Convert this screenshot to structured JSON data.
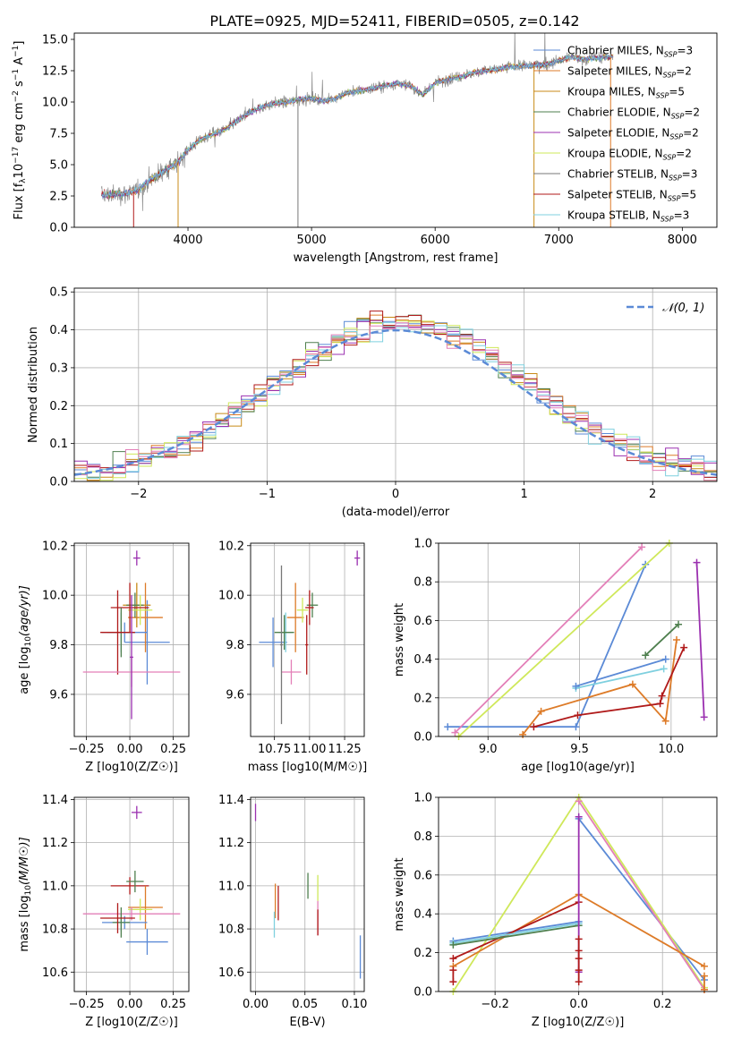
{
  "colors": {
    "chabrier_miles": "#5b8ad6",
    "salpeter_miles": "#dd7b28",
    "kroupa_miles": "#c88a17",
    "chabrier_elodie": "#4e7f4e",
    "salpeter_elodie": "#9b30b0",
    "kroupa_elodie": "#cfe85a",
    "chabrier_stelib": "#777777",
    "salpeter_stelib": "#b01a1a",
    "kroupa_stelib": "#7fd0df",
    "pink": "#e37fb8",
    "grid": "#b0b0b0"
  },
  "chart_data": [
    {
      "id": "spectrum",
      "type": "line",
      "title": "PLATE=0925, MJD=52411, FIBERID=0505, z=0.142",
      "xlabel": "wavelength [Angstrom, rest frame]",
      "ylabel": "Flux [f_λ 10^-17 erg cm^-2 s^-1 A^-1]",
      "xlim": [
        3080,
        8280
      ],
      "ylim": [
        0,
        15.5
      ],
      "xticks": [
        "4000",
        "5000",
        "6000",
        "7000",
        "8000"
      ],
      "yticks": [
        "0.0",
        "2.5",
        "5.0",
        "7.5",
        "10.0",
        "12.5",
        "15.0"
      ],
      "grid": false,
      "legend_position": "top-right",
      "legend": [
        {
          "label": "Chabrier MILES, N_SSP=3",
          "color_key": "chabrier_miles"
        },
        {
          "label": "Salpeter MILES, N_SSP=2",
          "color_key": "salpeter_miles"
        },
        {
          "label": "Kroupa MILES, N_SSP=5",
          "color_key": "kroupa_miles"
        },
        {
          "label": "Chabrier ELODIE, N_SSP=2",
          "color_key": "chabrier_elodie"
        },
        {
          "label": "Salpeter ELODIE, N_SSP=2",
          "color_key": "salpeter_elodie"
        },
        {
          "label": "Kroupa ELODIE, N_SSP=2",
          "color_key": "kroupa_elodie"
        },
        {
          "label": "Chabrier STELIB, N_SSP=3",
          "color_key": "chabrier_stelib"
        },
        {
          "label": "Salpeter STELIB, N_SSP=5",
          "color_key": "salpeter_stelib"
        },
        {
          "label": "Kroupa STELIB, N_SSP=3",
          "color_key": "kroupa_stelib"
        }
      ],
      "continuum": {
        "x": [
          3300,
          3400,
          3500,
          3600,
          3700,
          3800,
          3900,
          4000,
          4100,
          4200,
          4300,
          4400,
          4500,
          4600,
          4700,
          4800,
          4900,
          5000,
          5100,
          5200,
          5300,
          5400,
          5500,
          5600,
          5700,
          5800,
          5900,
          6000,
          6100,
          6200,
          6300,
          6400,
          6500,
          6600,
          6700,
          6800,
          6900,
          7000,
          7100,
          7200,
          7300,
          7400
        ],
        "y": [
          2.6,
          2.6,
          2.7,
          3.0,
          3.8,
          4.5,
          5.0,
          6.2,
          7.0,
          7.4,
          7.8,
          8.5,
          9.2,
          9.6,
          9.9,
          10.0,
          10.2,
          10.3,
          10.1,
          10.3,
          10.8,
          10.9,
          11.1,
          11.3,
          11.5,
          11.3,
          10.6,
          11.5,
          11.8,
          12.0,
          12.3,
          12.5,
          12.6,
          12.8,
          12.9,
          12.9,
          13.0,
          13.3,
          13.6,
          13.4,
          13.5,
          13.6
        ]
      }
    },
    {
      "id": "residuals",
      "type": "histogram",
      "xlabel": "(data-model)/error",
      "ylabel": "Normed distribution",
      "xlim": [
        -2.5,
        2.5
      ],
      "ylim": [
        0,
        0.51
      ],
      "xticks": [
        "−2",
        "−1",
        "0",
        "1",
        "2"
      ],
      "yticks": [
        "0.0",
        "0.1",
        "0.2",
        "0.3",
        "0.4",
        "0.5"
      ],
      "grid": true,
      "legend_position": "top-right",
      "legend": [
        {
          "label": "𝒩(0, 1)",
          "color_key": "chabrier_miles",
          "style": "dashed"
        }
      ],
      "bin_width": 0.1
    },
    {
      "id": "age_vs_Z",
      "type": "errorbar",
      "xlabel": "Z [log10(Z/Z☉)]",
      "ylabel": "age  [log10(age/yr)]",
      "xlim": [
        -0.32,
        0.34
      ],
      "ylim": [
        9.43,
        10.21
      ],
      "xticks": [
        "−0.25",
        "0.00",
        "0.25"
      ],
      "yticks": [
        "9.6",
        "9.8",
        "10.0",
        "10.2"
      ],
      "grid": true,
      "points": [
        {
          "c": "chabrier_miles",
          "x": 0.1,
          "y": 9.81,
          "xerr": 0.13,
          "yerr": 0.17
        },
        {
          "c": "salpeter_miles",
          "x": 0.09,
          "y": 9.91,
          "xerr": 0.1,
          "yerr": 0.14
        },
        {
          "c": "kroupa_miles",
          "x": 0.04,
          "y": 9.96,
          "xerr": 0.08,
          "yerr": 0.09
        },
        {
          "c": "chabrier_elodie",
          "x": 0.03,
          "y": 9.96,
          "xerr": 0.05,
          "yerr": 0.05
        },
        {
          "c": "salpeter_elodie",
          "x": 0.04,
          "y": 10.15,
          "xerr": 0.02,
          "yerr": 0.03
        },
        {
          "c": "kroupa_elodie",
          "x": 0.06,
          "y": 9.94,
          "xerr": 0.07,
          "yerr": 0.06
        },
        {
          "c": "salpeter_stelib",
          "x": 0.0,
          "y": 9.95,
          "xerr": 0.11,
          "yerr": 0.1
        },
        {
          "c": "kroupa_stelib",
          "x": -0.05,
          "y": 9.85,
          "xerr": 0.05,
          "yerr": 0.08
        },
        {
          "c": "chabrier_elodie",
          "x": -0.05,
          "y": 9.85,
          "xerr": 0.08,
          "yerr": 0.1
        },
        {
          "c": "chabrier_miles",
          "x": -0.03,
          "y": 9.85,
          "xerr": 0.13,
          "yerr": 0.04
        },
        {
          "c": "salpeter_stelib",
          "x": -0.07,
          "y": 9.85,
          "xerr": 0.1,
          "yerr": 0.17
        },
        {
          "c": "pink",
          "x": 0.01,
          "y": 9.69,
          "xerr": 0.28,
          "yerr": 0.06
        },
        {
          "c": "salpeter_elodie",
          "x": 0.01,
          "y": 9.75,
          "xerr": 0.01,
          "yerr": 0.25
        }
      ]
    },
    {
      "id": "age_vs_mass",
      "type": "errorbar",
      "xlabel": "mass [log10(M/M☉)]",
      "ylabel": "",
      "xlim": [
        10.58,
        11.39
      ],
      "ylim": [
        9.43,
        10.21
      ],
      "xticks": [
        "10.75",
        "11.00",
        "11.25"
      ],
      "yticks": [
        "9.6",
        "9.8",
        "10.0",
        "10.2"
      ],
      "grid": true,
      "points": [
        {
          "c": "chabrier_miles",
          "x": 10.74,
          "y": 9.81,
          "xerr": 0.1,
          "yerr": 0.1
        },
        {
          "c": "kroupa_stelib",
          "x": 10.83,
          "y": 9.85,
          "xerr": 0.05,
          "yerr": 0.08
        },
        {
          "c": "chabrier_elodie",
          "x": 10.82,
          "y": 9.85,
          "xerr": 0.07,
          "yerr": 0.07
        },
        {
          "c": "salpeter_miles",
          "x": 10.9,
          "y": 9.91,
          "xerr": 0.06,
          "yerr": 0.14
        },
        {
          "c": "kroupa_elodie",
          "x": 10.95,
          "y": 9.94,
          "xerr": 0.04,
          "yerr": 0.05
        },
        {
          "c": "chabrier_elodie",
          "x": 11.02,
          "y": 9.96,
          "xerr": 0.04,
          "yerr": 0.05
        },
        {
          "c": "salpeter_stelib",
          "x": 11.0,
          "y": 9.95,
          "xerr": 0.03,
          "yerr": 0.07
        },
        {
          "c": "pink",
          "x": 10.87,
          "y": 9.69,
          "xerr": 0.07,
          "yerr": 0.05
        },
        {
          "c": "chabrier_stelib",
          "x": 10.8,
          "y": 9.8,
          "xerr": 0.01,
          "yerr": 0.32
        },
        {
          "c": "salpeter_stelib",
          "x": 10.98,
          "y": 9.8,
          "xerr": 0.01,
          "yerr": 0.12
        },
        {
          "c": "salpeter_elodie",
          "x": 11.34,
          "y": 10.15,
          "xerr": 0.02,
          "yerr": 0.03
        }
      ]
    },
    {
      "id": "weight_vs_age",
      "type": "line",
      "xlabel": "age  [log10(age/yr)]",
      "ylabel": "mass weight",
      "xlim": [
        8.73,
        10.25
      ],
      "ylim": [
        0,
        1.0
      ],
      "xticks": [
        "9.0",
        "9.5",
        "10.0"
      ],
      "yticks": [
        "0.0",
        "0.2",
        "0.4",
        "0.6",
        "0.8",
        "1.0"
      ],
      "grid": true,
      "series": [
        {
          "c": "chabrier_miles",
          "x": [
            8.78,
            9.48,
            9.86
          ],
          "y": [
            0.05,
            0.05,
            0.89
          ]
        },
        {
          "c": "salpeter_miles",
          "x": [
            9.19,
            9.29,
            9.79,
            9.97,
            10.03
          ],
          "y": [
            0.01,
            0.13,
            0.27,
            0.08,
            0.5
          ]
        },
        {
          "c": "chabrier_elodie",
          "x": [
            9.86,
            10.04
          ],
          "y": [
            0.42,
            0.58
          ]
        },
        {
          "c": "kroupa_elodie",
          "x": [
            8.84,
            9.99
          ],
          "y": [
            0.0,
            1.0
          ]
        },
        {
          "c": "pink",
          "x": [
            8.82,
            9.84
          ],
          "y": [
            0.02,
            0.98
          ]
        },
        {
          "c": "salpeter_elodie",
          "x": [
            10.14,
            10.18
          ],
          "y": [
            0.9,
            0.1
          ]
        },
        {
          "c": "salpeter_stelib",
          "x": [
            9.25,
            9.49,
            9.94,
            9.95,
            10.07
          ],
          "y": [
            0.05,
            0.11,
            0.17,
            0.21,
            0.46
          ]
        },
        {
          "c": "kroupa_stelib",
          "x": [
            9.48,
            9.96
          ],
          "y": [
            0.25,
            0.35
          ]
        },
        {
          "c": "chabrier_miles",
          "x": [
            9.48,
            9.97
          ],
          "y": [
            0.26,
            0.4
          ]
        }
      ]
    },
    {
      "id": "mass_vs_Z",
      "type": "errorbar",
      "xlabel": "Z [log10(Z/Z☉)]",
      "ylabel": "mass [log10(M/M☉)]",
      "xlim": [
        -0.32,
        0.34
      ],
      "ylim": [
        10.51,
        11.41
      ],
      "xticks": [
        "−0.25",
        "0.00",
        "0.25"
      ],
      "yticks": [
        "10.6",
        "10.8",
        "11.0",
        "11.2",
        "11.4"
      ],
      "grid": true,
      "points": [
        {
          "c": "salpeter_elodie",
          "x": 0.04,
          "y": 11.34,
          "xerr": 0.03,
          "yerr": 0.03
        },
        {
          "c": "salpeter_stelib",
          "x": 0.0,
          "y": 11.0,
          "xerr": 0.11,
          "yerr": 0.04
        },
        {
          "c": "chabrier_elodie",
          "x": 0.03,
          "y": 11.02,
          "xerr": 0.05,
          "yerr": 0.05
        },
        {
          "c": "salpeter_miles",
          "x": 0.09,
          "y": 10.9,
          "xerr": 0.1,
          "yerr": 0.1
        },
        {
          "c": "kroupa_elodie",
          "x": 0.06,
          "y": 10.89,
          "xerr": 0.07,
          "yerr": 0.05
        },
        {
          "c": "pink",
          "x": 0.01,
          "y": 10.87,
          "xerr": 0.28,
          "yerr": 0.03
        },
        {
          "c": "chabrier_miles",
          "x": -0.03,
          "y": 10.83,
          "xerr": 0.13,
          "yerr": 0.03
        },
        {
          "c": "kroupa_stelib",
          "x": -0.05,
          "y": 10.83,
          "xerr": 0.05,
          "yerr": 0.04
        },
        {
          "c": "chabrier_elodie",
          "x": -0.05,
          "y": 10.83,
          "xerr": 0.05,
          "yerr": 0.07
        },
        {
          "c": "salpeter_stelib",
          "x": -0.07,
          "y": 10.85,
          "xerr": 0.1,
          "yerr": 0.07
        },
        {
          "c": "chabrier_miles",
          "x": 0.1,
          "y": 10.74,
          "xerr": 0.12,
          "yerr": 0.06
        }
      ]
    },
    {
      "id": "mass_vs_ebv",
      "type": "errorbar",
      "xlabel": "E(B-V)",
      "ylabel": "",
      "xlim": [
        -0.005,
        0.11
      ],
      "ylim": [
        10.51,
        11.41
      ],
      "xticks": [
        "0.00",
        "0.05",
        "0.10"
      ],
      "yticks": [
        "10.6",
        "10.8",
        "11.0",
        "11.2",
        "11.4"
      ],
      "grid": true,
      "points": [
        {
          "c": "salpeter_elodie",
          "x": 0.0,
          "y": 11.34,
          "xerr": 0,
          "yerr": 0.04
        },
        {
          "c": "salpeter_miles",
          "x": 0.02,
          "y": 10.93,
          "xerr": 0,
          "yerr": 0.08
        },
        {
          "c": "salpeter_stelib",
          "x": 0.023,
          "y": 10.92,
          "xerr": 0,
          "yerr": 0.08
        },
        {
          "c": "kroupa_stelib",
          "x": 0.019,
          "y": 10.82,
          "xerr": 0,
          "yerr": 0.06
        },
        {
          "c": "chabrier_elodie",
          "x": 0.053,
          "y": 11.0,
          "xerr": 0,
          "yerr": 0.06
        },
        {
          "c": "kroupa_elodie",
          "x": 0.063,
          "y": 10.99,
          "xerr": 0,
          "yerr": 0.06
        },
        {
          "c": "pink",
          "x": 0.063,
          "y": 10.85,
          "xerr": 0,
          "yerr": 0.08
        },
        {
          "c": "salpeter_stelib",
          "x": 0.063,
          "y": 10.83,
          "xerr": 0,
          "yerr": 0.06
        },
        {
          "c": "chabrier_miles",
          "x": 0.106,
          "y": 10.67,
          "xerr": 0,
          "yerr": 0.1
        }
      ]
    },
    {
      "id": "weight_vs_Z",
      "type": "line",
      "xlabel": "Z [log10(Z/Z☉)]",
      "ylabel": "mass weight",
      "xlim": [
        -0.335,
        0.33
      ],
      "ylim": [
        0,
        1.0
      ],
      "xticks": [
        "−0.2",
        "0.0",
        "0.2"
      ],
      "yticks": [
        "0.0",
        "0.2",
        "0.4",
        "0.6",
        "0.8",
        "1.0"
      ],
      "grid": true,
      "series": [
        {
          "c": "chabrier_miles",
          "x": [
            0.0,
            0.3
          ],
          "y": [
            0.89,
            0.06
          ]
        },
        {
          "c": "chabrier_miles",
          "x": [
            -0.3,
            0.0
          ],
          "y": [
            0.26,
            0.36
          ]
        },
        {
          "c": "kroupa_elodie",
          "x": [
            -0.3,
            0.0,
            0.3
          ],
          "y": [
            0.0,
            1.0,
            0.02
          ]
        },
        {
          "c": "pink",
          "x": [
            0.0,
            0.3
          ],
          "y": [
            0.98,
            0.01
          ]
        },
        {
          "c": "salpeter_miles",
          "x": [
            -0.3,
            0.0,
            0.3
          ],
          "y": [
            0.13,
            0.5,
            0.13
          ]
        },
        {
          "c": "salpeter_stelib",
          "x": [
            -0.3,
            0.0
          ],
          "y": [
            0.17,
            0.46
          ]
        },
        {
          "c": "kroupa_stelib",
          "x": [
            -0.3,
            0.0
          ],
          "y": [
            0.25,
            0.35
          ]
        },
        {
          "c": "chabrier_elodie",
          "x": [
            -0.3,
            0.0
          ],
          "y": [
            0.24,
            0.34
          ]
        }
      ],
      "markers": [
        {
          "c": "salpeter_elodie",
          "x": 0.0,
          "y": [
            0.9,
            0.1
          ]
        },
        {
          "c": "salpeter_stelib",
          "x": 0.0,
          "y": [
            0.17,
            0.21,
            0.11,
            0.27,
            0.05
          ]
        },
        {
          "c": "salpeter_stelib",
          "x": -0.3,
          "y": [
            0.05,
            0.11
          ]
        },
        {
          "c": "salpeter_miles",
          "x": 0.3,
          "y": [
            0.01,
            0.08
          ]
        }
      ]
    }
  ]
}
